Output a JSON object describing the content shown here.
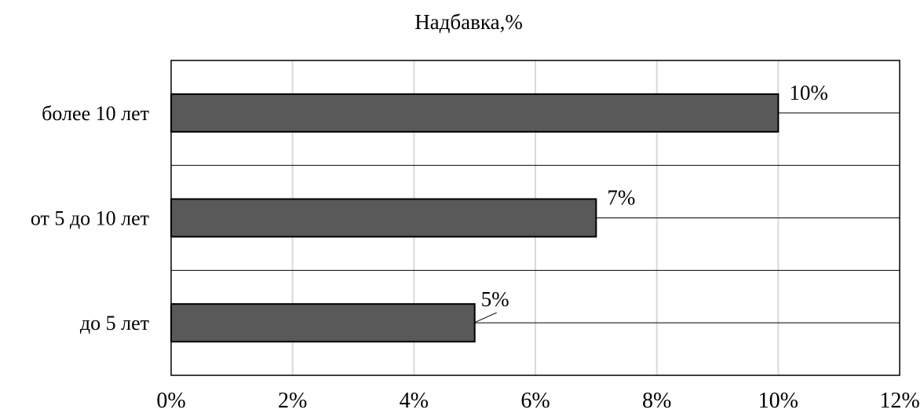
{
  "chart_data": {
    "type": "bar",
    "orientation": "horizontal",
    "title": "Надбавка,%",
    "xlabel": "",
    "ylabel": "",
    "categories": [
      "до 5 лет",
      "от 5 до 10 лет",
      "более 10 лет"
    ],
    "values": [
      5,
      7,
      10
    ],
    "value_unit": "%",
    "data_labels": [
      "5%",
      "7%",
      "10%"
    ],
    "xlim": [
      0,
      12
    ],
    "x_ticks": [
      0,
      2,
      4,
      6,
      8,
      10,
      12
    ],
    "x_tick_labels": [
      "0%",
      "2%",
      "4%",
      "6%",
      "8%",
      "10%",
      "12%"
    ],
    "grid": true,
    "legend": "none",
    "bar_color": "#595959",
    "bar_edge_color": "#000000",
    "grid_color": "#d9d9d9"
  }
}
